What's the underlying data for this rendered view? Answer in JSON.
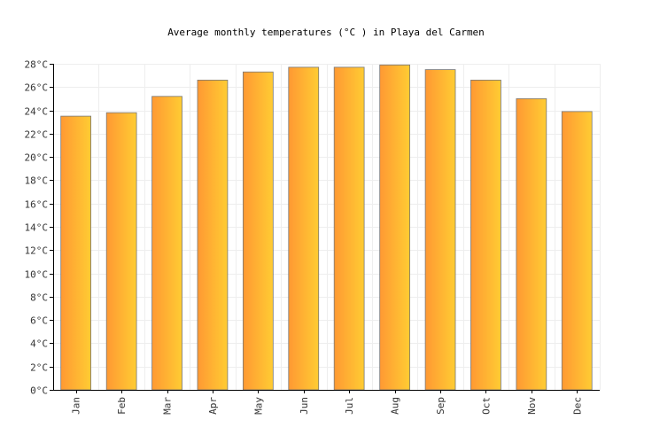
{
  "chart_data": {
    "type": "bar",
    "title": "Average monthly temperatures (°C ) in Playa del Carmen",
    "categories": [
      "Jan",
      "Feb",
      "Mar",
      "Apr",
      "May",
      "Jun",
      "Jul",
      "Aug",
      "Sep",
      "Oct",
      "Nov",
      "Dec"
    ],
    "values": [
      23.5,
      23.8,
      25.2,
      26.6,
      27.3,
      27.7,
      27.7,
      27.9,
      27.5,
      26.6,
      25.0,
      23.9
    ],
    "ylim": [
      0,
      28
    ],
    "yticks": [
      "0°C",
      "2°C",
      "4°C",
      "6°C",
      "8°C",
      "10°C",
      "12°C",
      "14°C",
      "16°C",
      "18°C",
      "20°C",
      "22°C",
      "24°C",
      "26°C",
      "28°C"
    ],
    "xlabel": "",
    "ylabel": "",
    "grid": true,
    "legend": "none",
    "colors": {
      "bar_left": "#ff9933",
      "bar_right": "#ffcc33",
      "bar_border": "#777777",
      "grid": "#eeeeee",
      "axis": "#000000"
    }
  }
}
